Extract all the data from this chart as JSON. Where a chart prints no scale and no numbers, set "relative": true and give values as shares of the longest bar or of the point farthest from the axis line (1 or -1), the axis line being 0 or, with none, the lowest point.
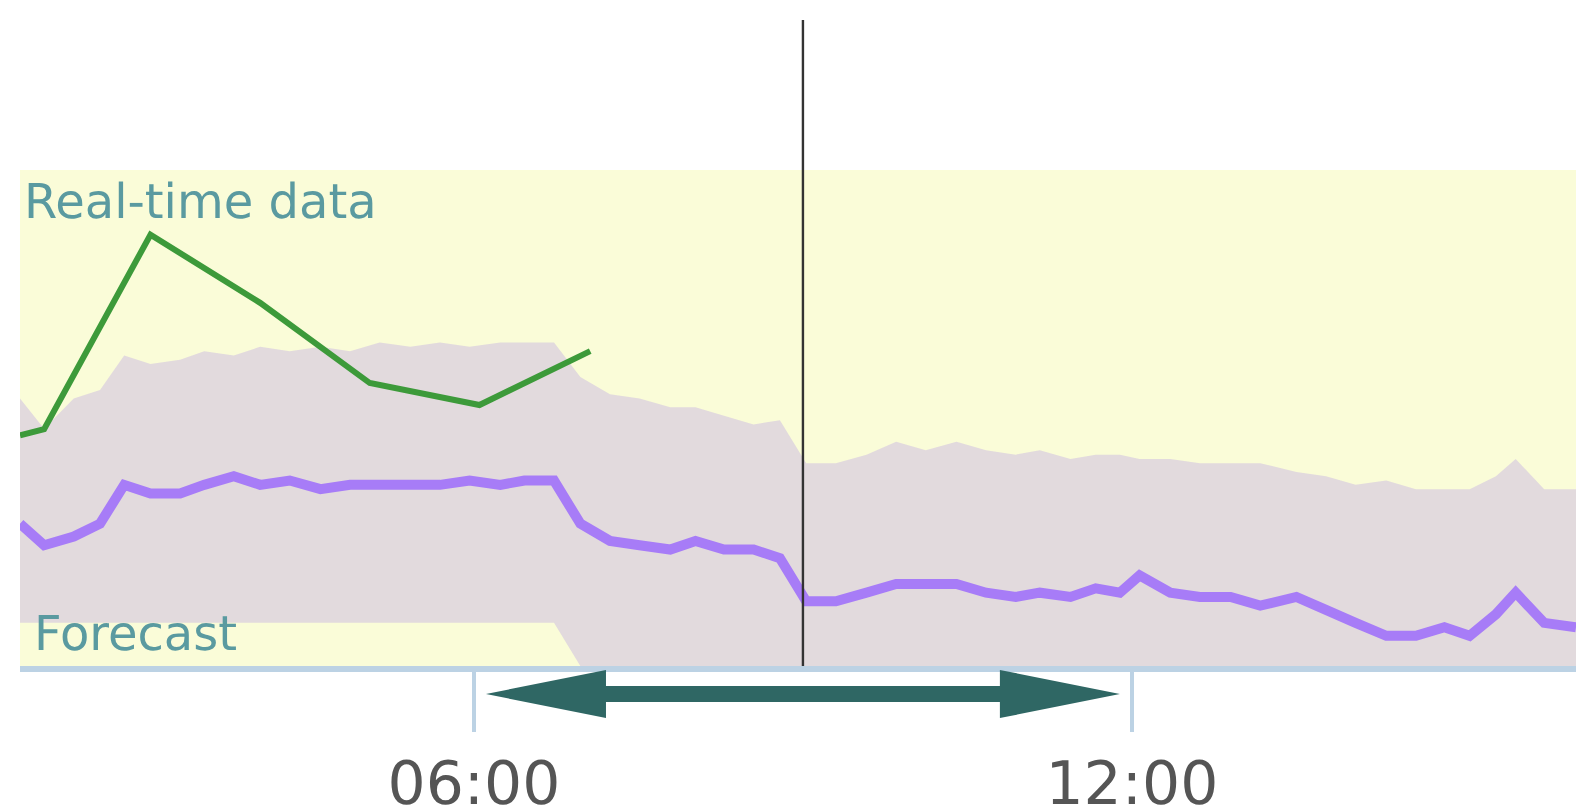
{
  "chart_data": {
    "type": "line",
    "relative": true,
    "tick_labels": "x",
    "xlim": [
      1.86,
      16.05
    ],
    "xticks": [
      {
        "value": 6,
        "label": "06:00"
      },
      {
        "value": 12,
        "label": "12:00"
      }
    ],
    "ref_lines": [
      {
        "axis": "x",
        "value": 9,
        "color": "#333333"
      }
    ],
    "marker": "none",
    "series": [
      {
        "name": "Forecast",
        "color": "#a77cf7",
        "x": [
          1.86,
          2.08,
          2.35,
          2.59,
          2.81,
          3.05,
          3.32,
          3.54,
          3.81,
          4.05,
          4.32,
          4.6,
          4.87,
          5.14,
          5.42,
          5.69,
          5.96,
          6.24,
          6.46,
          6.73,
          6.97,
          7.24,
          7.51,
          7.79,
          8.02,
          8.28,
          8.55,
          8.79,
          9.03,
          9.3,
          9.58,
          9.85,
          10.12,
          10.4,
          10.67,
          10.94,
          11.16,
          11.44,
          11.67,
          11.89,
          12.07,
          12.35,
          12.62,
          12.9,
          13.17,
          13.5,
          13.77,
          14.04,
          14.32,
          14.59,
          14.85,
          15.08,
          15.32,
          15.5,
          15.76,
          16.05
        ],
        "values": [
          0.33,
          0.28,
          0.3,
          0.33,
          0.42,
          0.4,
          0.4,
          0.42,
          0.44,
          0.42,
          0.43,
          0.41,
          0.42,
          0.42,
          0.42,
          0.42,
          0.43,
          0.42,
          0.43,
          0.43,
          0.33,
          0.29,
          0.28,
          0.27,
          0.29,
          0.27,
          0.27,
          0.25,
          0.15,
          0.15,
          0.17,
          0.19,
          0.19,
          0.19,
          0.17,
          0.16,
          0.17,
          0.16,
          0.18,
          0.17,
          0.21,
          0.17,
          0.16,
          0.16,
          0.14,
          0.16,
          0.13,
          0.1,
          0.07,
          0.07,
          0.09,
          0.07,
          0.12,
          0.17,
          0.1,
          0.09
        ],
        "lower": [
          0.1,
          0.1,
          0.1,
          0.1,
          0.1,
          0.1,
          0.1,
          0.1,
          0.1,
          0.1,
          0.1,
          0.1,
          0.1,
          0.1,
          0.1,
          0.1,
          0.1,
          0.1,
          0.1,
          0.1,
          0,
          0,
          0,
          0,
          0,
          0,
          0,
          0,
          0,
          0,
          0,
          0,
          0,
          0,
          0,
          0,
          0,
          0,
          0,
          0,
          0,
          0,
          0,
          0,
          0,
          0,
          0,
          0,
          0,
          0,
          0,
          0,
          0,
          0,
          0,
          0
        ],
        "upper": [
          0.62,
          0.55,
          0.62,
          0.64,
          0.72,
          0.7,
          0.71,
          0.73,
          0.72,
          0.74,
          0.73,
          0.74,
          0.73,
          0.75,
          0.74,
          0.75,
          0.74,
          0.75,
          0.75,
          0.75,
          0.67,
          0.63,
          0.62,
          0.6,
          0.6,
          0.58,
          0.56,
          0.57,
          0.47,
          0.47,
          0.49,
          0.52,
          0.5,
          0.52,
          0.5,
          0.49,
          0.5,
          0.48,
          0.49,
          0.49,
          0.48,
          0.48,
          0.47,
          0.47,
          0.47,
          0.45,
          0.44,
          0.42,
          0.43,
          0.41,
          0.41,
          0.41,
          0.44,
          0.48,
          0.41,
          0.41
        ]
      },
      {
        "name": "Real-time data",
        "color": "#3d9a3a",
        "x": [
          1.86,
          2.08,
          3.05,
          4.05,
          5.05,
          6.05,
          7.06
        ],
        "values": [
          0.535,
          0.549,
          1,
          0.842,
          0.656,
          0.605,
          0.73
        ]
      }
    ]
  }
}
